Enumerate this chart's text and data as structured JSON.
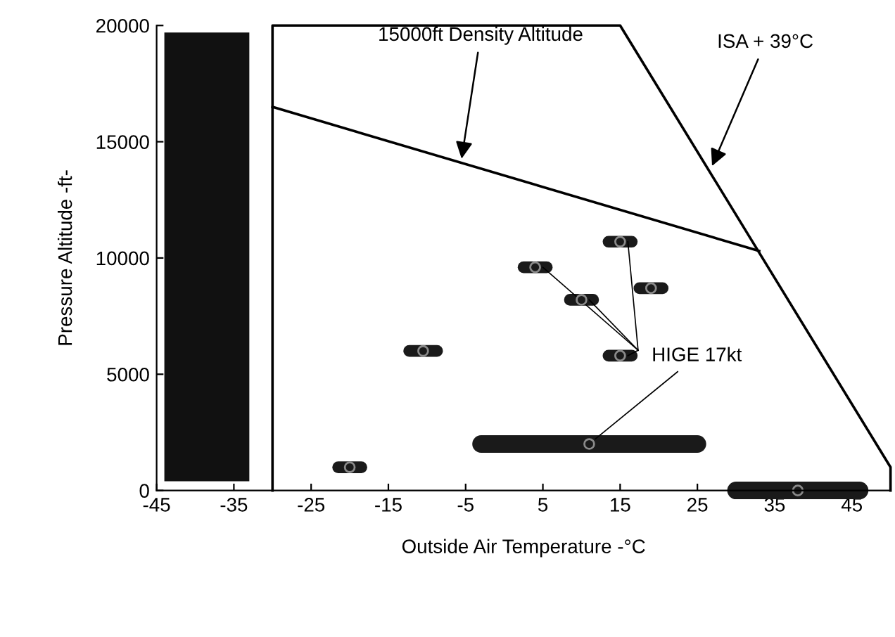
{
  "chart_data": {
    "type": "scatter",
    "xlabel": "Outside Air Temperature -°C",
    "ylabel": "Pressure Altitude -ft-",
    "xlim": [
      -45,
      50
    ],
    "xticks": [
      -45,
      -35,
      -25,
      -15,
      -5,
      5,
      15,
      25,
      35,
      45
    ],
    "ylim": [
      0,
      20000
    ],
    "yticks": [
      0,
      5000,
      10000,
      15000,
      20000
    ],
    "grid": false,
    "series": [
      {
        "color": "#1a1a1a",
        "x": [
          4,
          10,
          15,
          15,
          11
        ],
        "values": [
          9600,
          8200,
          10700,
          5800,
          2000
        ],
        "xerrors": [
          1.5,
          1.5,
          1.5,
          1.5,
          14
        ]
      },
      {
        "color": "#1a1a1a",
        "x": [
          -20,
          -10.5,
          19,
          38
        ],
        "values": [
          1000,
          6000,
          8700,
          0
        ],
        "xerrors": [
          1.5,
          1.8,
          1.5,
          8
        ]
      },
      {
        "type": "line",
        "color": "#000000",
        "x": [
          -30,
          -30,
          15,
          50,
          50
        ],
        "values": [
          0,
          20000,
          20000,
          1000,
          0
        ]
      },
      {
        "type": "line",
        "color": "#000000",
        "x": [
          -30,
          33
        ],
        "values": [
          16500,
          10300
        ]
      }
    ],
    "bands": [
      {
        "axis": "x",
        "from": -44,
        "to": -33,
        "color": "#111111"
      }
    ],
    "annotations": [
      {
        "text": "15000ft Density Altitude",
        "x": -5.6,
        "y": 14100
      },
      {
        "text": "ISA + 39°C",
        "x": 26.7,
        "y": 13800
      },
      {
        "text": "HIGE 17kt",
        "x": 11,
        "y": 2000
      }
    ]
  }
}
